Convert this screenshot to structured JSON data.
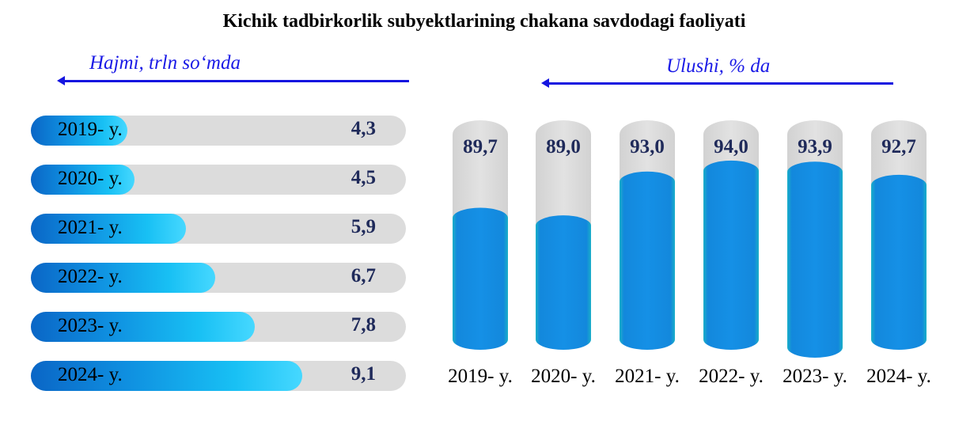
{
  "title": "Kichik tadbirkorlik subyektlarining chakana savdodagi faoliyati",
  "left_panel": {
    "label": "Hajmi, trln so‘mda"
  },
  "right_panel": {
    "label": "Ulushi, % da"
  },
  "chart_data": [
    {
      "type": "bar",
      "orientation": "horizontal",
      "categories": [
        "2019- y.",
        "2020- y.",
        "2021- y.",
        "2022- y.",
        "2023- y.",
        "2024- y."
      ],
      "values": [
        4.3,
        4.5,
        5.9,
        6.7,
        7.8,
        9.1
      ],
      "value_labels": [
        "4,3",
        "4,5",
        "5,9",
        "6,7",
        "7,8",
        "9,1"
      ],
      "title": "Hajmi, trln so‘mda"
    },
    {
      "type": "bar",
      "orientation": "vertical",
      "categories": [
        "2019- y.",
        "2020- y.",
        "2021- y.",
        "2022- y.",
        "2023- y.",
        "2024- y."
      ],
      "values": [
        89.7,
        89.0,
        93.0,
        94.0,
        93.9,
        92.7
      ],
      "value_labels": [
        "89,7",
        "89,0",
        "93,0",
        "94,0",
        "93,9",
        "92,7"
      ],
      "title": "Ulushi, % da"
    }
  ],
  "colors": {
    "arrow": "#1515e0",
    "label_text": "#1a1ae6",
    "track": "#dcdcdc",
    "bar": "#1188de",
    "value_text": "#1f2a5a"
  }
}
